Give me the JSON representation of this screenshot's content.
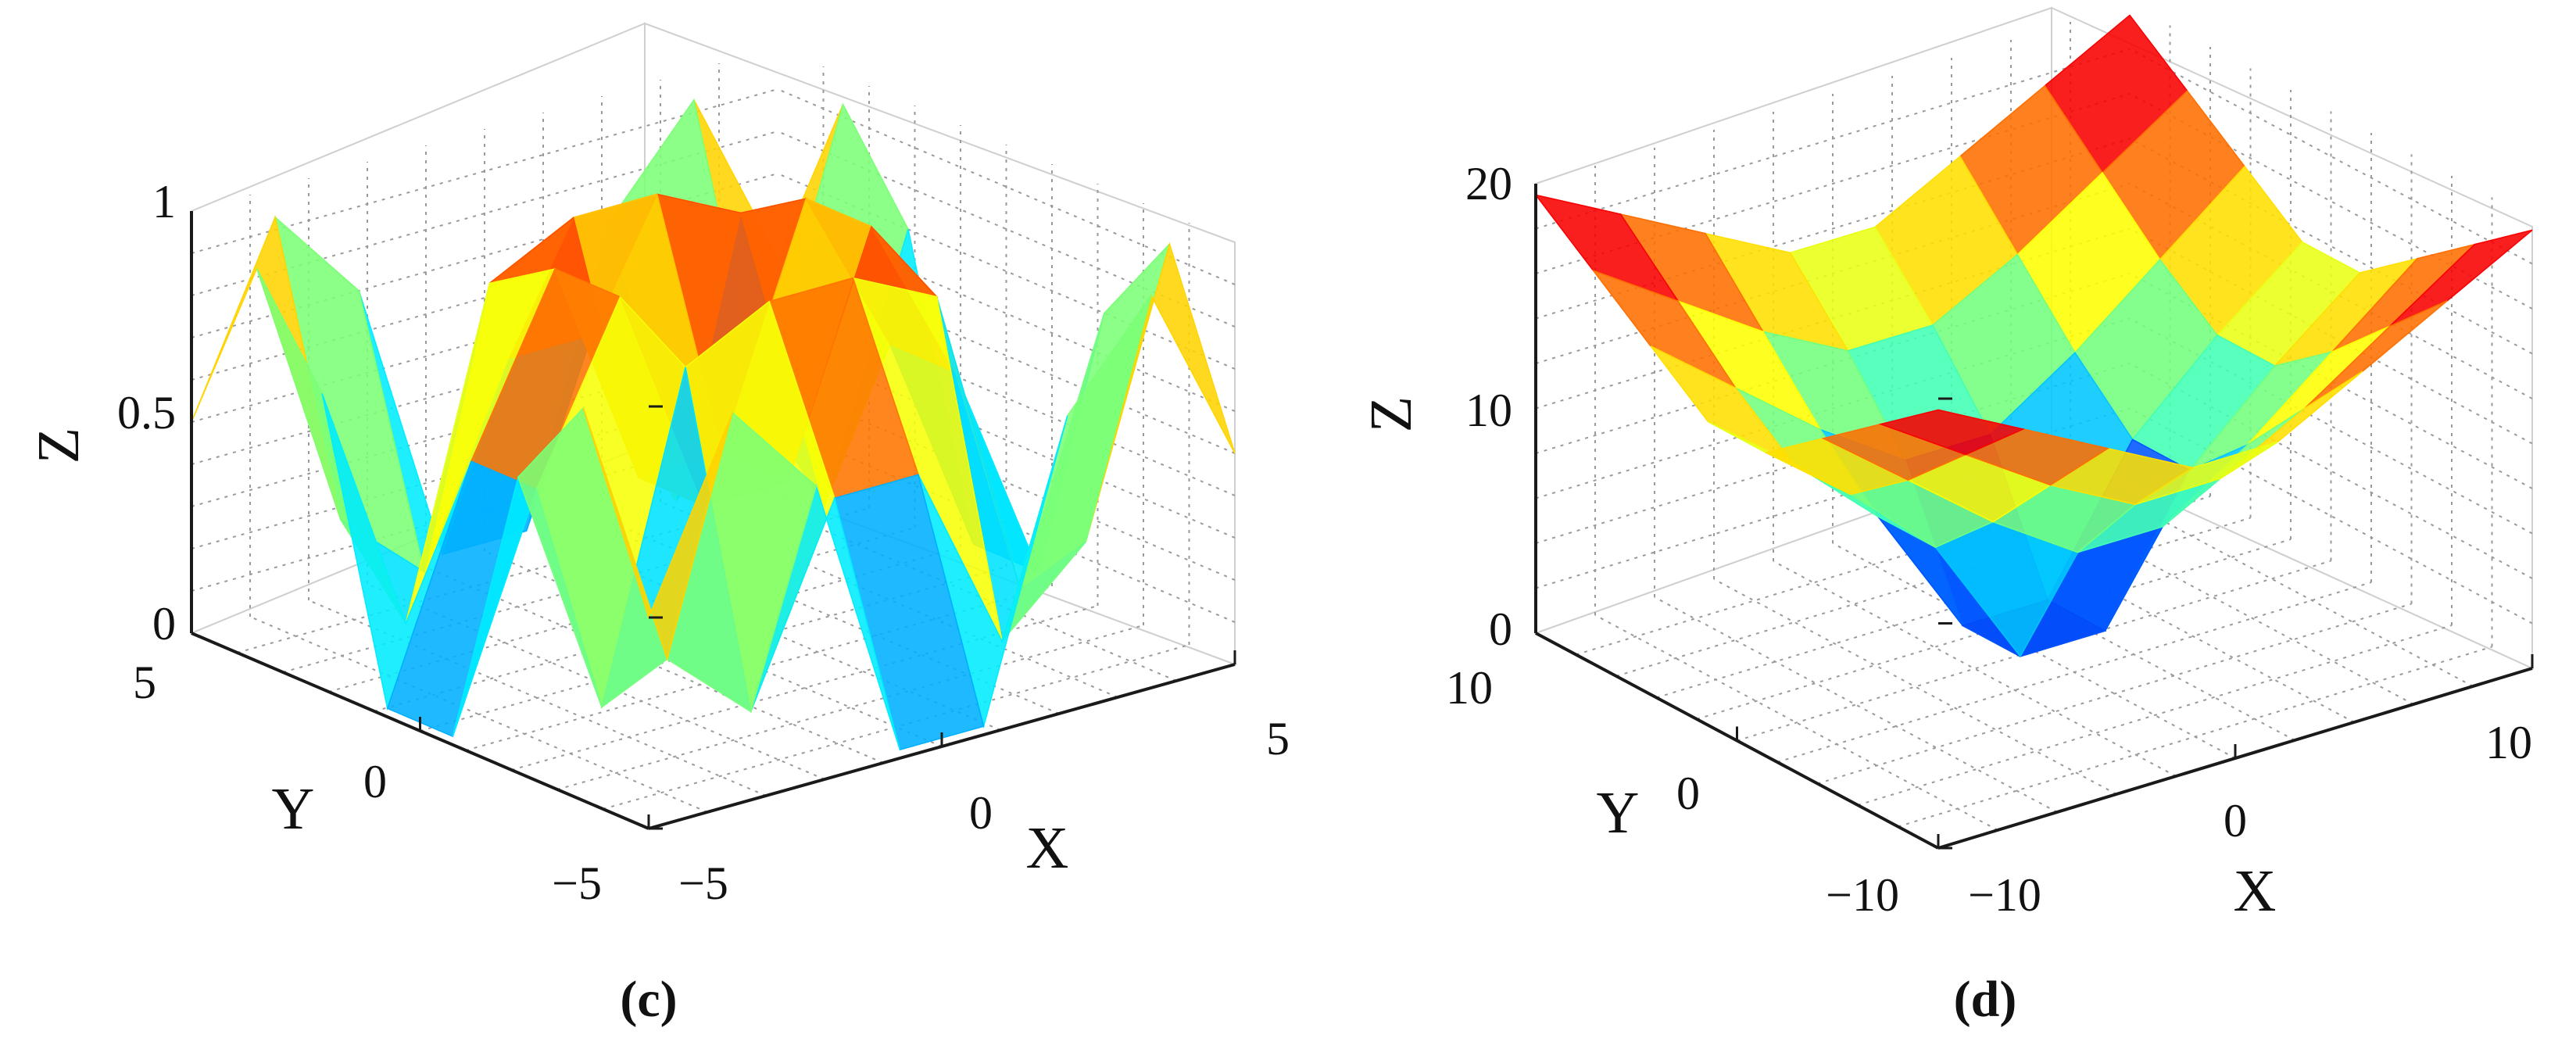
{
  "chart_data": [
    {
      "type": "surface",
      "panel_label": "(c)",
      "xlabel": "X",
      "ylabel": "Y",
      "zlabel": "Z",
      "xlim": [
        -5,
        5
      ],
      "ylim": [
        -5,
        5
      ],
      "zlim": [
        0,
        1
      ],
      "x_ticks": [
        "−5",
        "0",
        "5"
      ],
      "y_ticks": [
        "−5",
        "0",
        "5"
      ],
      "z_ticks": [
        "0",
        "0.5",
        "1"
      ],
      "grid": "dotted",
      "colormap": "jet",
      "colors": {
        "low": "#0000c8",
        "mid": "#f5f000",
        "high": "#a80000"
      },
      "surface_z": [
        [
          0.5,
          0.93,
          0.7,
          0.02,
          0.02,
          0.7,
          0.93,
          0.5
        ],
        [
          0.93,
          0.28,
          0.1,
          0.55,
          0.55,
          0.1,
          0.28,
          0.93
        ],
        [
          0.7,
          0.1,
          0.85,
          0.95,
          0.95,
          0.85,
          0.1,
          0.7
        ],
        [
          0.02,
          0.55,
          0.95,
          0.4,
          0.4,
          0.95,
          0.55,
          0.02
        ],
        [
          0.02,
          0.55,
          0.95,
          0.4,
          0.4,
          0.95,
          0.55,
          0.02
        ],
        [
          0.7,
          0.1,
          0.85,
          0.95,
          0.95,
          0.85,
          0.1,
          0.7
        ],
        [
          0.93,
          0.28,
          0.1,
          0.55,
          0.55,
          0.1,
          0.28,
          0.93
        ],
        [
          0.5,
          0.93,
          0.7,
          0.02,
          0.02,
          0.7,
          0.93,
          0.5
        ]
      ]
    },
    {
      "type": "surface",
      "panel_label": "(d)",
      "xlabel": "X",
      "ylabel": "Y",
      "zlabel": "Z",
      "xlim": [
        -10,
        10
      ],
      "ylim": [
        -10,
        10
      ],
      "zlim": [
        0,
        20
      ],
      "x_ticks": [
        "−10",
        "0",
        "10"
      ],
      "y_ticks": [
        "−10",
        "0",
        "10"
      ],
      "z_ticks": [
        "0",
        "10",
        "20"
      ],
      "grid": "dotted",
      "colormap": "jet",
      "colors": {
        "low": "#0000c8",
        "mid": "#f5f000",
        "high": "#a80000"
      },
      "surface_z": [
        [
          19.5,
          17.5,
          15.5,
          13.5,
          13.5,
          15.5,
          17.5,
          19.5
        ],
        [
          17.5,
          15.0,
          12.5,
          10.5,
          10.5,
          12.5,
          15.0,
          17.5
        ],
        [
          15.5,
          12.5,
          9.5,
          7.0,
          7.0,
          9.5,
          12.5,
          15.5
        ],
        [
          13.5,
          10.5,
          7.0,
          1.0,
          1.0,
          7.0,
          10.5,
          13.5
        ],
        [
          13.5,
          10.5,
          7.0,
          1.0,
          1.0,
          7.0,
          10.5,
          13.5
        ],
        [
          15.5,
          12.5,
          9.5,
          7.0,
          7.0,
          9.5,
          12.5,
          15.5
        ],
        [
          17.5,
          15.0,
          12.5,
          10.5,
          10.5,
          12.5,
          15.0,
          17.5
        ],
        [
          19.5,
          17.5,
          15.5,
          13.5,
          13.5,
          15.5,
          17.5,
          19.5
        ]
      ]
    }
  ]
}
